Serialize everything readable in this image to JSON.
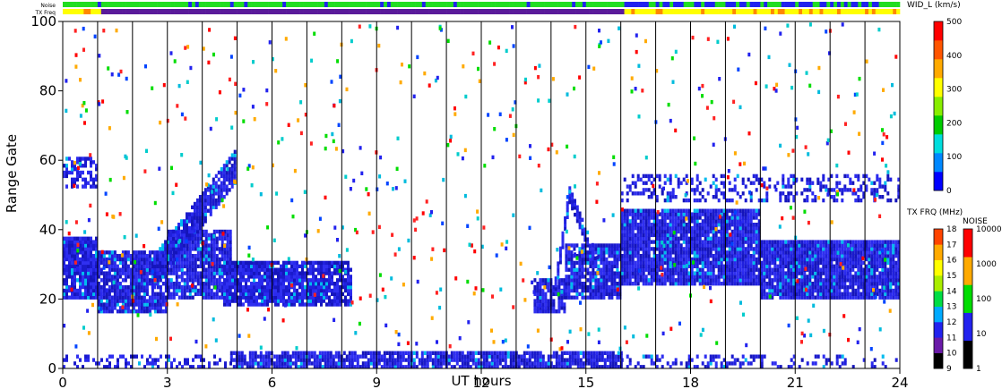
{
  "chart_data": {
    "type": "heatmap",
    "title": "",
    "xlabel": "UT hours",
    "ylabel": "Range Gate",
    "xlim": [
      0,
      24
    ],
    "ylim": [
      0,
      100
    ],
    "xticks": [
      "0",
      "3",
      "6",
      "9",
      "12",
      "15",
      "18",
      "21",
      "24"
    ],
    "yticks": [
      "0",
      "20",
      "40",
      "60",
      "80",
      "100"
    ],
    "grid": "vertical lines every hour",
    "strips": {
      "noise_label": "Noise",
      "txfreq_label": "TX Freq",
      "noise_colors": [
        "#22dd22",
        "#2222ee"
      ],
      "txfreq_colors": [
        "#ffff00",
        "#ff8800",
        "#5a1a9a"
      ]
    },
    "regions": [
      {
        "t0": 0.0,
        "t1": 1.0,
        "g0": 20,
        "g1": 38,
        "density": 0.95
      },
      {
        "t0": 0.0,
        "t1": 1.0,
        "g0": 52,
        "g1": 61,
        "density": 0.55
      },
      {
        "t0": 1.0,
        "t1": 3.0,
        "g0": 16,
        "g1": 34,
        "density": 0.9
      },
      {
        "t0": 3.0,
        "t1": 4.8,
        "g0": 20,
        "g1": 40,
        "density": 0.9
      },
      {
        "t0": 4.6,
        "t1": 8.3,
        "g0": 18,
        "g1": 31,
        "density": 0.9
      },
      {
        "t0": 13.5,
        "t1": 14.4,
        "g0": 16,
        "g1": 26,
        "density": 0.85
      },
      {
        "t0": 14.4,
        "t1": 16.0,
        "g0": 20,
        "g1": 36,
        "density": 0.9
      },
      {
        "t0": 16.0,
        "t1": 20.0,
        "g0": 24,
        "g1": 46,
        "density": 0.95
      },
      {
        "t0": 16.0,
        "t1": 20.0,
        "g0": 48,
        "g1": 56,
        "density": 0.35
      },
      {
        "t0": 20.0,
        "t1": 24.0,
        "g0": 20,
        "g1": 37,
        "density": 0.95
      },
      {
        "t0": 20.0,
        "t1": 24.0,
        "g0": 48,
        "g1": 56,
        "density": 0.35
      },
      {
        "t0": 4.8,
        "t1": 16.0,
        "g0": 0,
        "g1": 5,
        "density": 0.85
      },
      {
        "t0": 0.0,
        "t1": 4.8,
        "g0": 0,
        "g1": 4,
        "density": 0.3
      },
      {
        "t0": 16.0,
        "t1": 24.0,
        "g0": 0,
        "g1": 4,
        "density": 0.25
      }
    ],
    "diagonal_features": [
      {
        "t0": 2.6,
        "g0": 28,
        "t1": 4.9,
        "g1": 58,
        "width": 5,
        "density": 0.9
      },
      {
        "t0": 14.1,
        "g0": 24,
        "t1": 14.5,
        "g1": 50,
        "width": 2.5,
        "density": 0.9
      },
      {
        "t0": 14.5,
        "g0": 50,
        "t1": 15.3,
        "g1": 30,
        "width": 2.5,
        "density": 0.8
      }
    ],
    "colorbars": [
      {
        "label": "WID_L (km/s)",
        "ticks": [
          "0",
          "100",
          "200",
          "300",
          "400",
          "500"
        ],
        "colors": [
          "#0000ff",
          "#0088ff",
          "#00dddd",
          "#00cc00",
          "#88ee00",
          "#ffff00",
          "#ffaa00",
          "#ff5500",
          "#ff0000"
        ]
      },
      {
        "label": "TX FRQ (MHz)",
        "ticks": [
          "9",
          "10",
          "11",
          "12",
          "13",
          "14",
          "15",
          "16",
          "17",
          "18"
        ],
        "colors": [
          "#000000",
          "#6a1aa8",
          "#2222ee",
          "#00aaff",
          "#00dd44",
          "#aaee00",
          "#ffff00",
          "#ffaa00",
          "#ff4400"
        ]
      },
      {
        "label": "NOISE",
        "ticks": [
          "1",
          "10",
          "100",
          "1000",
          "10000"
        ],
        "colors": [
          "#000000",
          "#2222ee",
          "#00dd00",
          "#ffaa00",
          "#ff0000"
        ]
      }
    ]
  }
}
